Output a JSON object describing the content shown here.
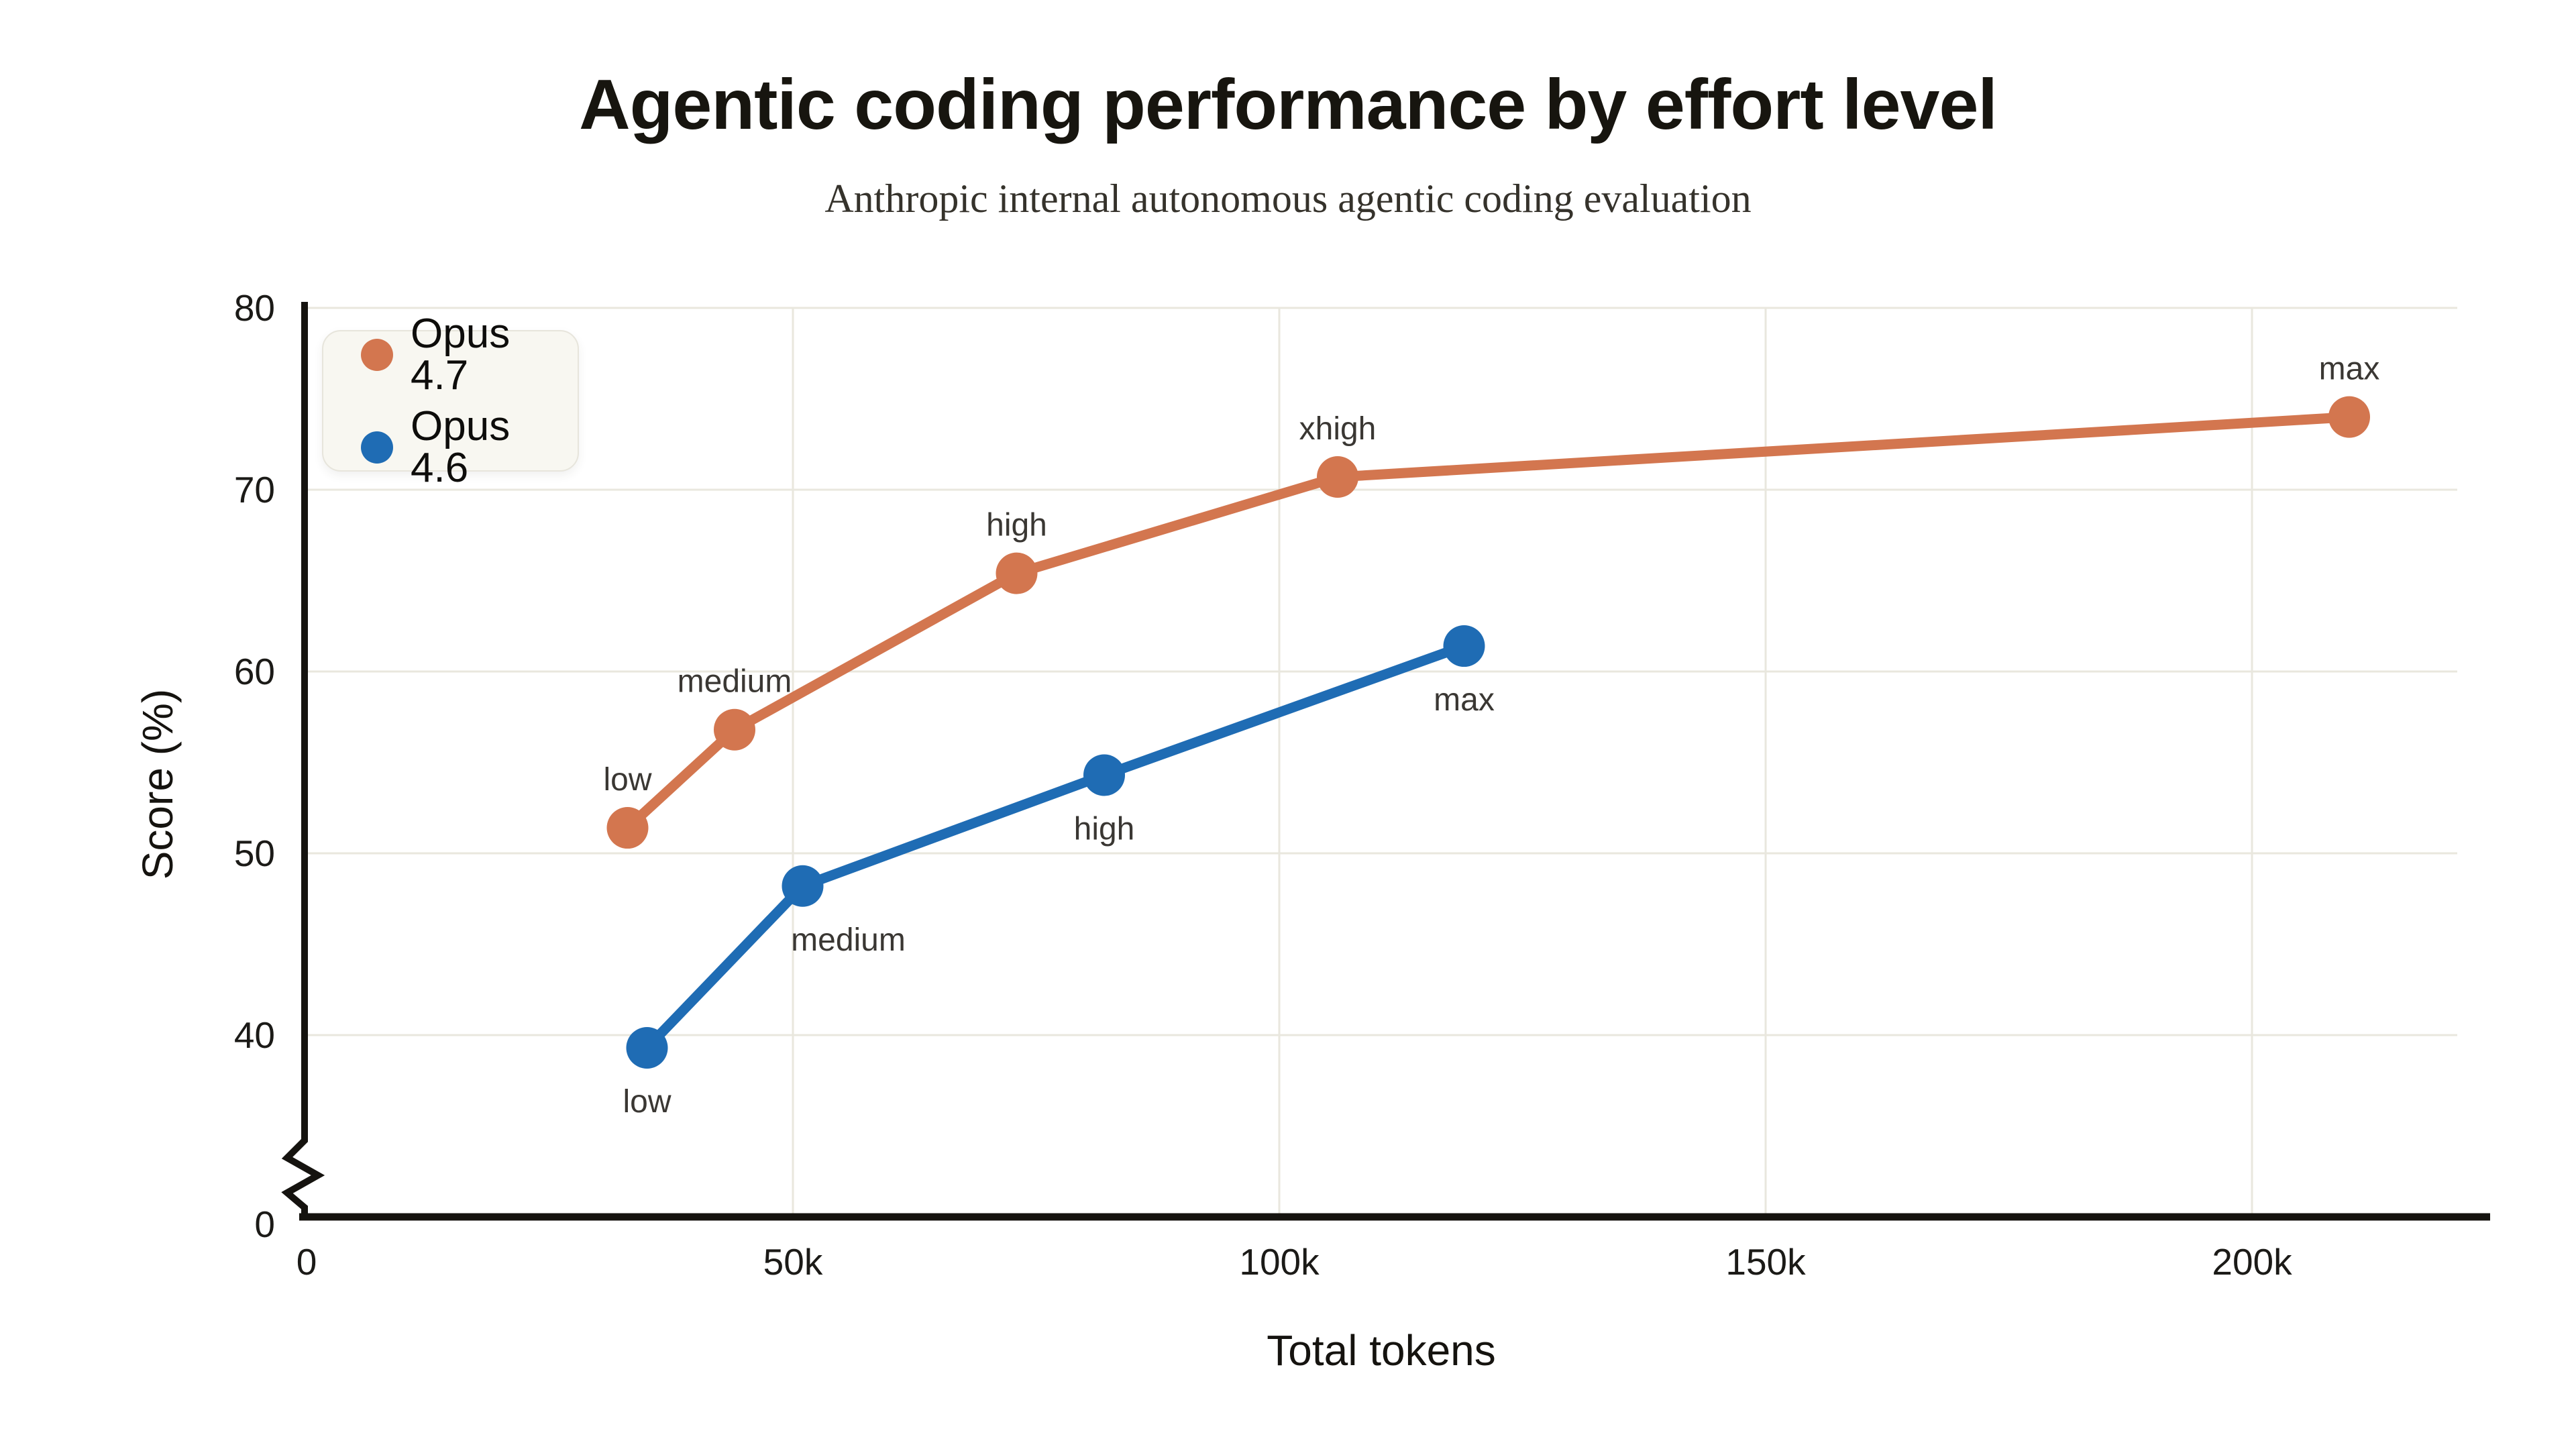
{
  "header": {
    "title": "Agentic coding performance by effort level",
    "subtitle": "Anthropic internal autonomous agentic coding evaluation"
  },
  "colors": {
    "opus_47": "#d3764f",
    "opus_46": "#1f6cb4",
    "grid": "#e9e7de",
    "axis": "#15130f",
    "tick_text": "#1b1a17",
    "point_label_text": "#3a3733",
    "legend_bg": "#f8f7f1",
    "legend_border": "#e7e5dc",
    "page_bg": "#ffffff"
  },
  "legend": {
    "items": [
      {
        "label": "Opus 4.7",
        "color": "#d3764f"
      },
      {
        "label": "Opus 4.6",
        "color": "#1f6cb4"
      }
    ]
  },
  "chart_data": {
    "type": "line",
    "title": "Agentic coding performance by effort level",
    "subtitle": "Anthropic internal autonomous agentic coding evaluation",
    "xlabel": "Total tokens",
    "ylabel": "Score (%)",
    "xlim": [
      0,
      221000
    ],
    "ylim": [
      0,
      80
    ],
    "y_axis_break": {
      "present": true,
      "hidden_range": [
        0,
        40
      ]
    },
    "grid": true,
    "legend_position": "top-left",
    "x_ticks": [
      {
        "value": 0,
        "label": "0"
      },
      {
        "value": 50000,
        "label": "50k"
      },
      {
        "value": 100000,
        "label": "100k"
      },
      {
        "value": 150000,
        "label": "150k"
      },
      {
        "value": 200000,
        "label": "200k"
      }
    ],
    "y_ticks": [
      {
        "value": 80,
        "label": "80"
      },
      {
        "value": 70,
        "label": "70"
      },
      {
        "value": 60,
        "label": "60"
      },
      {
        "value": 50,
        "label": "50"
      },
      {
        "value": 40,
        "label": "40"
      },
      {
        "value": 0,
        "label": "0",
        "below_break": true
      }
    ],
    "series": [
      {
        "name": "Opus 4.7",
        "color": "#d3764f",
        "points": [
          {
            "label": "low",
            "tokens": 33000,
            "score": 51.4,
            "label_placement": "above"
          },
          {
            "label": "medium",
            "tokens": 44000,
            "score": 56.8,
            "label_placement": "above"
          },
          {
            "label": "high",
            "tokens": 73000,
            "score": 65.4,
            "label_placement": "above"
          },
          {
            "label": "xhigh",
            "tokens": 106000,
            "score": 70.7,
            "label_placement": "above"
          },
          {
            "label": "max",
            "tokens": 210000,
            "score": 74.0,
            "label_placement": "above"
          }
        ]
      },
      {
        "name": "Opus 4.6",
        "color": "#1f6cb4",
        "points": [
          {
            "label": "low",
            "tokens": 35000,
            "score": 39.3,
            "label_placement": "below"
          },
          {
            "label": "medium",
            "tokens": 51000,
            "score": 48.2,
            "label_placement": "below-right"
          },
          {
            "label": "high",
            "tokens": 82000,
            "score": 54.3,
            "label_placement": "below"
          },
          {
            "label": "max",
            "tokens": 119000,
            "score": 61.4,
            "label_placement": "below"
          }
        ]
      }
    ]
  }
}
